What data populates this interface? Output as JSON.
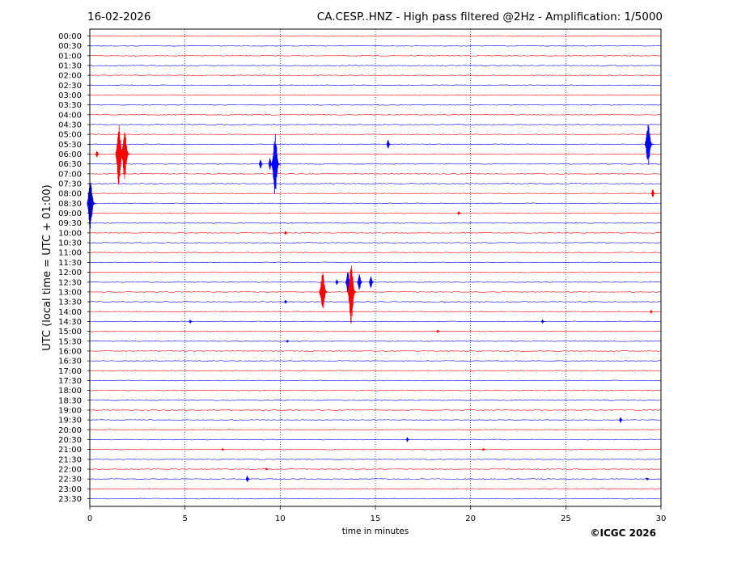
{
  "header": {
    "date": "16-02-2026",
    "title": "CA.CESP..HNZ - High pass filtered @2Hz - Amplification: 1/5000"
  },
  "copyright": "©ICGC 2026",
  "chart_data": {
    "type": "line",
    "title": "CA.CESP..HNZ - High pass filtered @2Hz - Amplification: 1/5000",
    "xlabel": "time in minutes",
    "ylabel": "UTC (local time = UTC + 01:00)",
    "xlim": [
      0,
      30
    ],
    "x_ticks": [
      0,
      5,
      10,
      15,
      20,
      25,
      30
    ],
    "x_tick_labels": [
      "0",
      "5",
      "10",
      "15",
      "20",
      "25",
      "30"
    ],
    "grid": "vertical dotted at x ticks",
    "row_labels": [
      "00:00",
      "00:30",
      "01:00",
      "01:30",
      "02:00",
      "02:30",
      "03:00",
      "03:30",
      "04:00",
      "04:30",
      "05:00",
      "05:30",
      "06:00",
      "06:30",
      "07:00",
      "07:30",
      "08:00",
      "08:30",
      "09:00",
      "09:30",
      "10:00",
      "10:30",
      "11:00",
      "11:30",
      "12:00",
      "12:30",
      "13:00",
      "13:30",
      "14:00",
      "14:30",
      "15:00",
      "15:30",
      "16:00",
      "16:30",
      "17:00",
      "17:30",
      "18:00",
      "18:30",
      "19:00",
      "19:30",
      "20:00",
      "20:30",
      "21:00",
      "21:30",
      "22:00",
      "22:30",
      "23:00",
      "23:30"
    ],
    "row_colors": [
      "#ff0000",
      "#0000ff"
    ],
    "events": [
      {
        "row": 12,
        "minute": 0.4,
        "amplitude": 0.35
      },
      {
        "row": 12,
        "minute": 1.6,
        "amplitude": 3.2
      },
      {
        "row": 12,
        "minute": 1.9,
        "amplitude": 2.6
      },
      {
        "row": 13,
        "minute": 9.0,
        "amplitude": 0.5
      },
      {
        "row": 13,
        "minute": 9.5,
        "amplitude": 0.6
      },
      {
        "row": 13,
        "minute": 9.8,
        "amplitude": 3.3
      },
      {
        "row": 11,
        "minute": 15.7,
        "amplitude": 0.5
      },
      {
        "row": 11,
        "minute": 29.4,
        "amplitude": 2.2
      },
      {
        "row": 16,
        "minute": 29.6,
        "amplitude": 0.45
      },
      {
        "row": 17,
        "minute": 0.1,
        "amplitude": 2.7
      },
      {
        "row": 18,
        "minute": 19.4,
        "amplitude": 0.2
      },
      {
        "row": 20,
        "minute": 10.3,
        "amplitude": 0.2
      },
      {
        "row": 26,
        "minute": 12.3,
        "amplitude": 2.1
      },
      {
        "row": 25,
        "minute": 13.0,
        "amplitude": 0.3
      },
      {
        "row": 25,
        "minute": 13.6,
        "amplitude": 1.1
      },
      {
        "row": 25,
        "minute": 14.2,
        "amplitude": 0.9
      },
      {
        "row": 25,
        "minute": 14.8,
        "amplitude": 0.7
      },
      {
        "row": 26,
        "minute": 13.8,
        "amplitude": 3.5
      },
      {
        "row": 27,
        "minute": 10.3,
        "amplitude": 0.2
      },
      {
        "row": 29,
        "minute": 5.3,
        "amplitude": 0.2
      },
      {
        "row": 29,
        "minute": 23.8,
        "amplitude": 0.2
      },
      {
        "row": 30,
        "minute": 18.3,
        "amplitude": 0.15
      },
      {
        "row": 31,
        "minute": 10.4,
        "amplitude": 0.15
      },
      {
        "row": 39,
        "minute": 27.9,
        "amplitude": 0.3
      },
      {
        "row": 41,
        "minute": 16.7,
        "amplitude": 0.25
      },
      {
        "row": 42,
        "minute": 7.0,
        "amplitude": 0.12
      },
      {
        "row": 42,
        "minute": 20.7,
        "amplitude": 0.12
      },
      {
        "row": 44,
        "minute": 9.3,
        "amplitude": 0.12
      },
      {
        "row": 45,
        "minute": 8.3,
        "amplitude": 0.35
      },
      {
        "row": 45,
        "minute": 29.3,
        "amplitude": 0.15
      },
      {
        "row": 28,
        "minute": 29.5,
        "amplitude": 0.2
      }
    ]
  }
}
